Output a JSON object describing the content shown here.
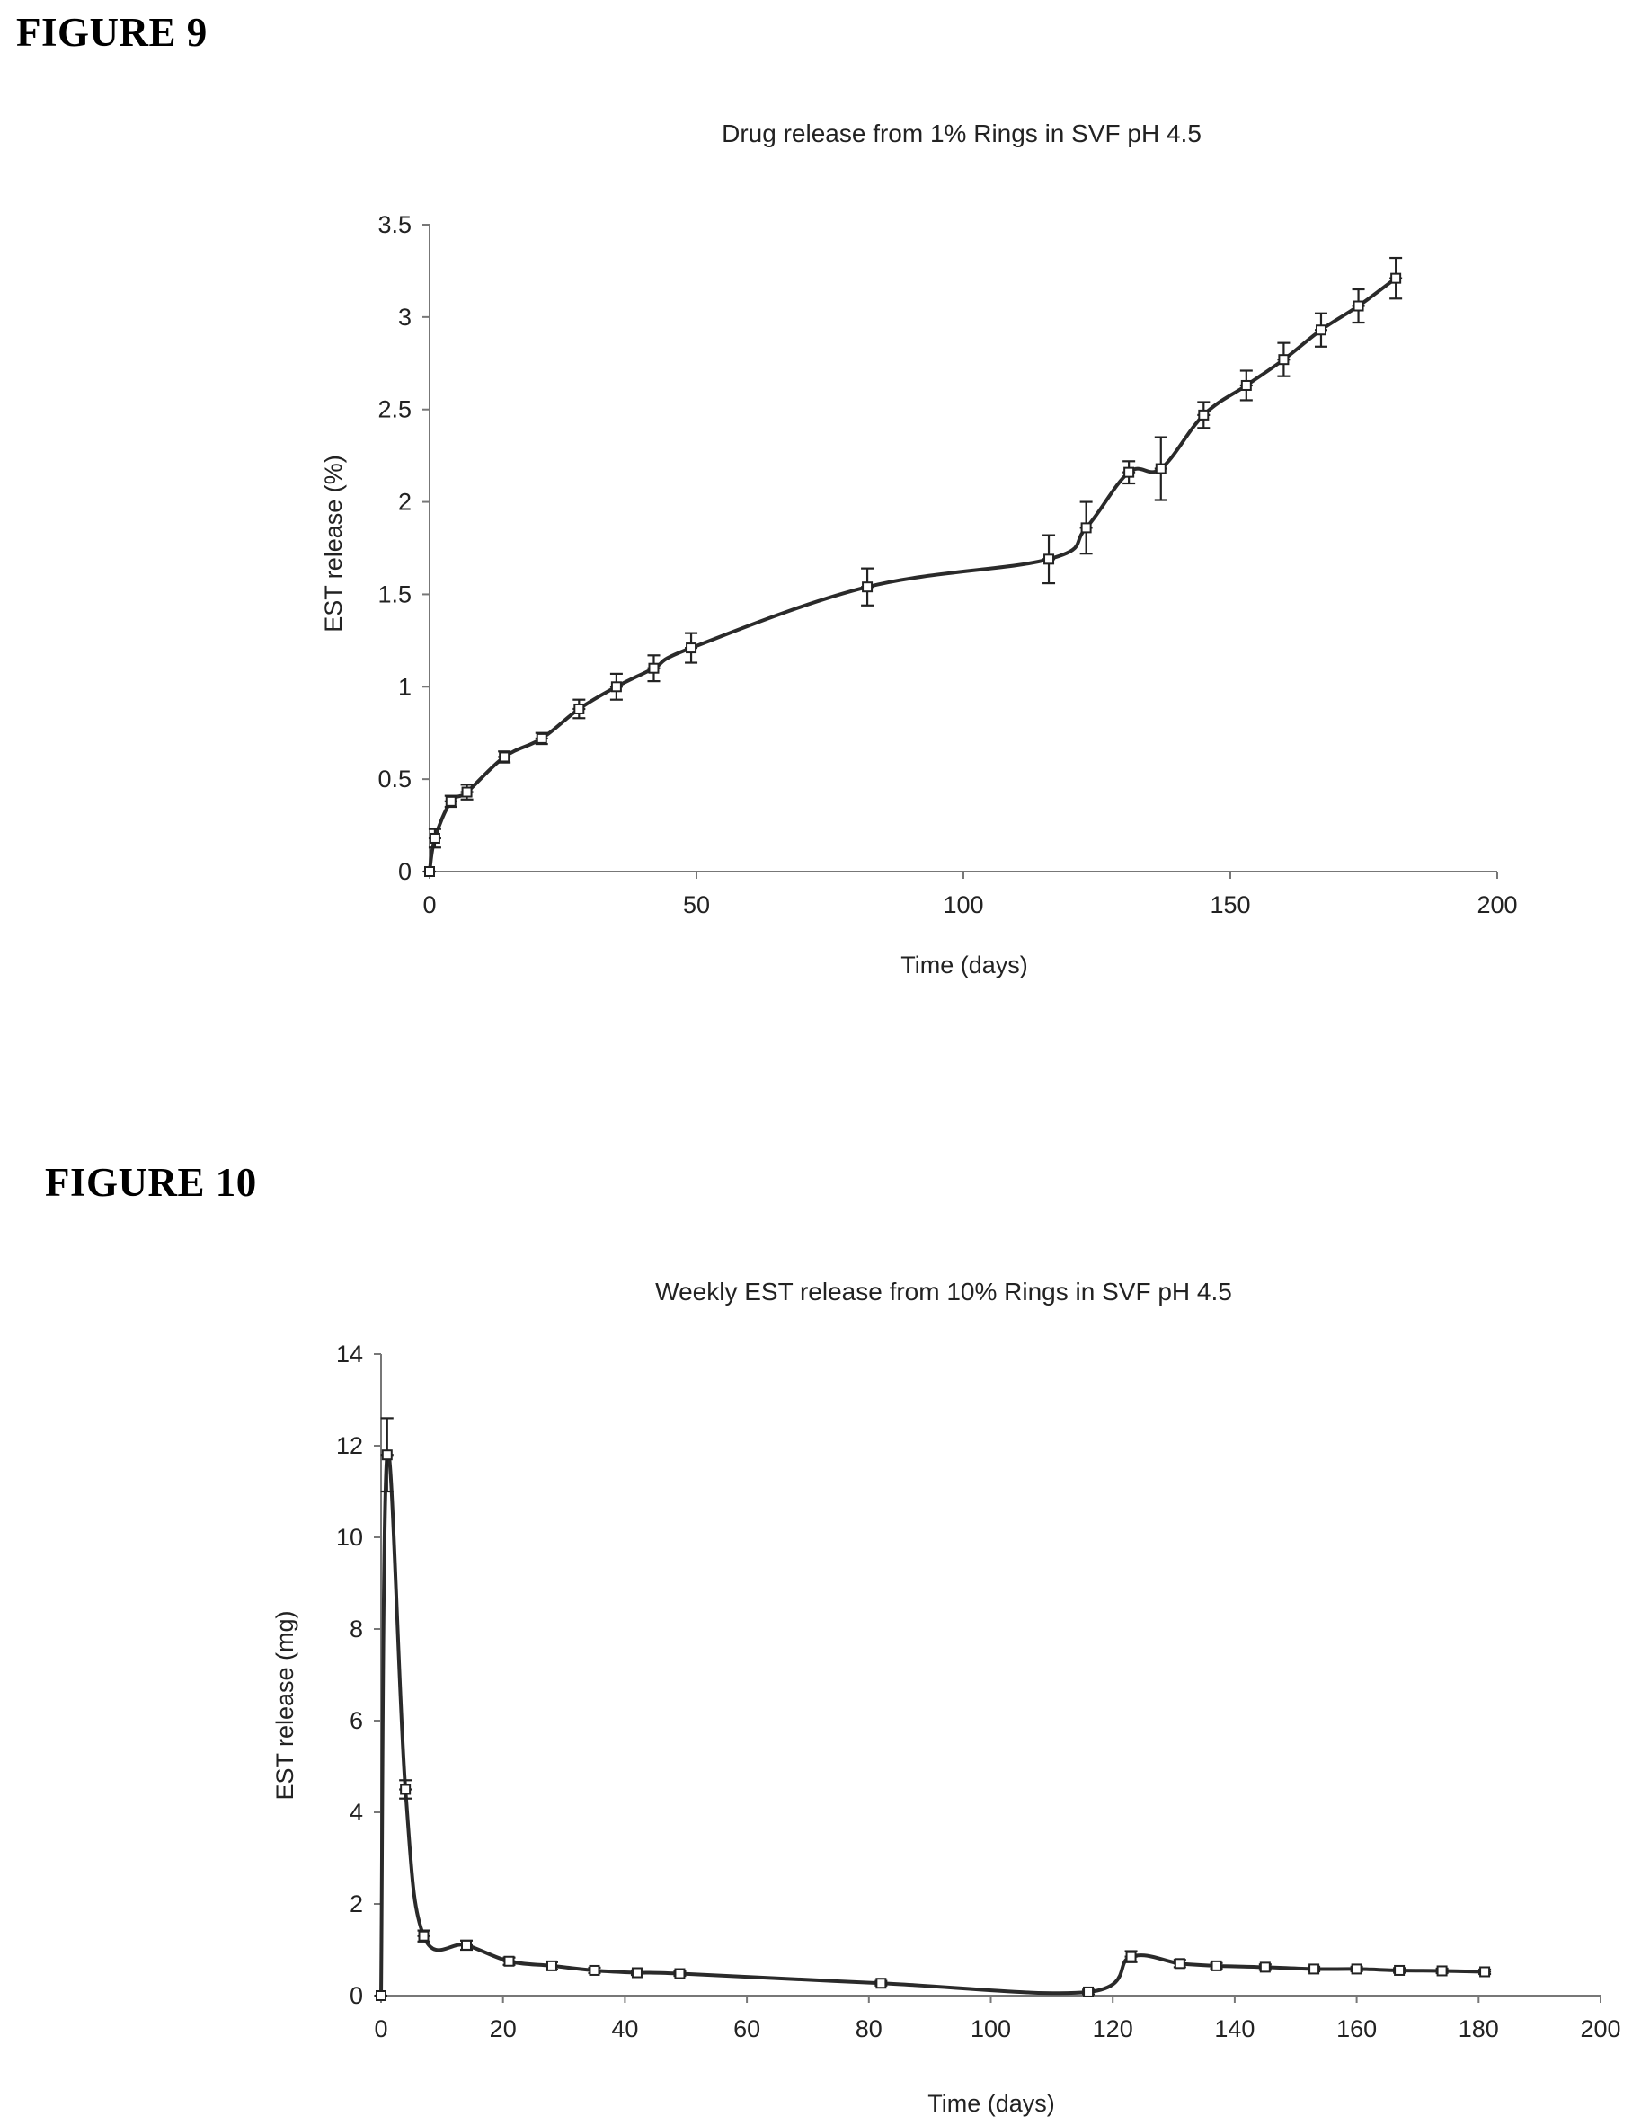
{
  "figures": [
    {
      "heading": "FIGURE 9"
    },
    {
      "heading": "FIGURE 10"
    }
  ],
  "chart_data": [
    {
      "type": "line",
      "title": "Drug release from 1% Rings in SVF pH 4.5",
      "xlabel": "Time (days)",
      "ylabel": "EST release (%)",
      "xlim": [
        0,
        200
      ],
      "ylim": [
        0,
        3.5
      ],
      "xticks": [
        "0",
        "50",
        "100",
        "150",
        "200"
      ],
      "yticks": [
        "0",
        "0.5",
        "1",
        "1.5",
        "2",
        "2.5",
        "3",
        "3.5"
      ],
      "grid": false,
      "legend": "none",
      "x": [
        0,
        1,
        4,
        7,
        14,
        21,
        28,
        35,
        42,
        49,
        82,
        116,
        123,
        131,
        137,
        145,
        153,
        160,
        167,
        174,
        181
      ],
      "y": [
        0,
        0.18,
        0.38,
        0.43,
        0.62,
        0.72,
        0.88,
        1.0,
        1.1,
        1.21,
        1.54,
        1.69,
        1.86,
        2.16,
        2.18,
        2.47,
        2.63,
        2.77,
        2.93,
        3.06,
        3.21
      ],
      "error": [
        0,
        0.05,
        0.03,
        0.04,
        0.03,
        0.03,
        0.05,
        0.07,
        0.07,
        0.08,
        0.1,
        0.13,
        0.14,
        0.06,
        0.17,
        0.07,
        0.08,
        0.09,
        0.09,
        0.09,
        0.11
      ]
    },
    {
      "type": "line",
      "title": "Weekly EST release from 10% Rings in SVF pH 4.5",
      "xlabel": "Time (days)",
      "ylabel": "EST release (mg)",
      "xlim": [
        0,
        200
      ],
      "ylim": [
        0,
        14
      ],
      "xticks": [
        "0",
        "20",
        "40",
        "60",
        "80",
        "100",
        "120",
        "140",
        "160",
        "180",
        "200"
      ],
      "yticks": [
        "0",
        "2",
        "4",
        "6",
        "8",
        "10",
        "12",
        "14"
      ],
      "grid": false,
      "legend": "none",
      "x": [
        0,
        1,
        4,
        7,
        14,
        21,
        28,
        35,
        42,
        49,
        82,
        116,
        123,
        131,
        137,
        145,
        153,
        160,
        167,
        174,
        181
      ],
      "y": [
        0,
        11.8,
        4.5,
        1.3,
        1.1,
        0.75,
        0.65,
        0.55,
        0.5,
        0.48,
        0.27,
        0.08,
        0.85,
        0.7,
        0.65,
        0.62,
        0.58,
        0.58,
        0.55,
        0.54,
        0.52
      ],
      "error": [
        0,
        0.8,
        0.2,
        0.12,
        0.1,
        0.08,
        0.08,
        0.06,
        0.05,
        0.05,
        0.05,
        0.05,
        0.12,
        0.08,
        0.06,
        0.06,
        0.05,
        0.05,
        0.05,
        0.05,
        0.05
      ]
    }
  ]
}
